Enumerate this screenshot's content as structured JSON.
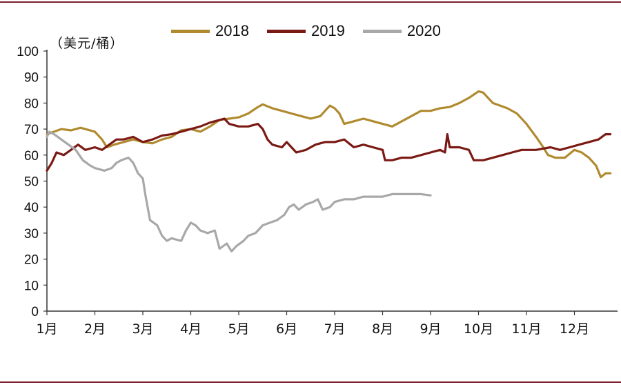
{
  "chart_data": {
    "type": "line",
    "ylabel": "（美元/桶）",
    "ylim": [
      0,
      100
    ],
    "yticks": [
      "0",
      "10",
      "20",
      "30",
      "40",
      "50",
      "60",
      "70",
      "80",
      "90",
      "100"
    ],
    "categories": [
      "1月",
      "2月",
      "3月",
      "4月",
      "5月",
      "6月",
      "7月",
      "8月",
      "9月",
      "10月",
      "11月",
      "12月"
    ],
    "legend_position": "top",
    "grid": false,
    "series": [
      {
        "name": "2018",
        "color": "#b08a2e",
        "points": [
          [
            1.0,
            68
          ],
          [
            1.3,
            70
          ],
          [
            1.5,
            69.5
          ],
          [
            1.7,
            70.5
          ],
          [
            2.0,
            69
          ],
          [
            2.15,
            66
          ],
          [
            2.25,
            63
          ],
          [
            2.4,
            64
          ],
          [
            2.6,
            65
          ],
          [
            2.8,
            66
          ],
          [
            3.0,
            65
          ],
          [
            3.2,
            64.5
          ],
          [
            3.4,
            66
          ],
          [
            3.6,
            67
          ],
          [
            3.8,
            69.5
          ],
          [
            4.0,
            70
          ],
          [
            4.2,
            69
          ],
          [
            4.4,
            71
          ],
          [
            4.6,
            73.5
          ],
          [
            4.8,
            74
          ],
          [
            5.0,
            74.5
          ],
          [
            5.2,
            76
          ],
          [
            5.4,
            78.5
          ],
          [
            5.5,
            79.5
          ],
          [
            5.7,
            78
          ],
          [
            5.9,
            77
          ],
          [
            6.1,
            76
          ],
          [
            6.3,
            75
          ],
          [
            6.5,
            74
          ],
          [
            6.7,
            75
          ],
          [
            6.8,
            77
          ],
          [
            6.9,
            79
          ],
          [
            7.0,
            78
          ],
          [
            7.1,
            76
          ],
          [
            7.2,
            72
          ],
          [
            7.4,
            73
          ],
          [
            7.6,
            74
          ],
          [
            7.8,
            73
          ],
          [
            8.0,
            72
          ],
          [
            8.2,
            71
          ],
          [
            8.4,
            73
          ],
          [
            8.6,
            75
          ],
          [
            8.8,
            77
          ],
          [
            9.0,
            77
          ],
          [
            9.2,
            78
          ],
          [
            9.4,
            78.5
          ],
          [
            9.6,
            80
          ],
          [
            9.8,
            82
          ],
          [
            10.0,
            84.5
          ],
          [
            10.1,
            84
          ],
          [
            10.2,
            82
          ],
          [
            10.3,
            80
          ],
          [
            10.6,
            78
          ],
          [
            10.8,
            76
          ],
          [
            11.0,
            72
          ],
          [
            11.2,
            67
          ],
          [
            11.35,
            63
          ],
          [
            11.45,
            60
          ],
          [
            11.6,
            59
          ],
          [
            11.8,
            59
          ],
          [
            12.0,
            62
          ],
          [
            12.15,
            61
          ],
          [
            12.3,
            59
          ],
          [
            12.45,
            56
          ],
          [
            12.55,
            51.5
          ],
          [
            12.65,
            53
          ],
          [
            12.75,
            53
          ]
        ]
      },
      {
        "name": "2019",
        "color": "#7b1a14",
        "points": [
          [
            1.0,
            54
          ],
          [
            1.1,
            57
          ],
          [
            1.2,
            61
          ],
          [
            1.35,
            60
          ],
          [
            1.5,
            62
          ],
          [
            1.65,
            64
          ],
          [
            1.8,
            62
          ],
          [
            2.0,
            63
          ],
          [
            2.15,
            62
          ],
          [
            2.3,
            64
          ],
          [
            2.45,
            66
          ],
          [
            2.6,
            66
          ],
          [
            2.8,
            67
          ],
          [
            3.0,
            65
          ],
          [
            3.2,
            66
          ],
          [
            3.4,
            67.5
          ],
          [
            3.6,
            68
          ],
          [
            3.8,
            69
          ],
          [
            4.0,
            70
          ],
          [
            4.2,
            71
          ],
          [
            4.4,
            72.5
          ],
          [
            4.6,
            73.5
          ],
          [
            4.7,
            74
          ],
          [
            4.8,
            72
          ],
          [
            5.0,
            71
          ],
          [
            5.2,
            71
          ],
          [
            5.4,
            72
          ],
          [
            5.5,
            70
          ],
          [
            5.6,
            66
          ],
          [
            5.7,
            64
          ],
          [
            5.9,
            63
          ],
          [
            6.0,
            65
          ],
          [
            6.1,
            63
          ],
          [
            6.2,
            61
          ],
          [
            6.4,
            62
          ],
          [
            6.6,
            64
          ],
          [
            6.8,
            65
          ],
          [
            7.0,
            65
          ],
          [
            7.2,
            66
          ],
          [
            7.4,
            63
          ],
          [
            7.6,
            64
          ],
          [
            7.8,
            63
          ],
          [
            8.0,
            62
          ],
          [
            8.05,
            58
          ],
          [
            8.2,
            58
          ],
          [
            8.4,
            59
          ],
          [
            8.6,
            59
          ],
          [
            8.8,
            60
          ],
          [
            9.0,
            61
          ],
          [
            9.2,
            62
          ],
          [
            9.3,
            61
          ],
          [
            9.35,
            68
          ],
          [
            9.4,
            63
          ],
          [
            9.6,
            63
          ],
          [
            9.8,
            62
          ],
          [
            9.9,
            58
          ],
          [
            10.1,
            58
          ],
          [
            10.3,
            59
          ],
          [
            10.5,
            60
          ],
          [
            10.7,
            61
          ],
          [
            10.9,
            62
          ],
          [
            11.2,
            62
          ],
          [
            11.5,
            63
          ],
          [
            11.7,
            62
          ],
          [
            11.9,
            63
          ],
          [
            12.1,
            64
          ],
          [
            12.3,
            65
          ],
          [
            12.5,
            66
          ],
          [
            12.65,
            68
          ],
          [
            12.75,
            68
          ]
        ]
      },
      {
        "name": "2020",
        "color": "#a8a8a8",
        "points": [
          [
            1.0,
            67
          ],
          [
            1.05,
            69
          ],
          [
            1.15,
            68
          ],
          [
            1.3,
            66
          ],
          [
            1.45,
            64
          ],
          [
            1.6,
            62
          ],
          [
            1.75,
            58
          ],
          [
            1.9,
            56
          ],
          [
            2.0,
            55
          ],
          [
            2.2,
            54
          ],
          [
            2.35,
            55
          ],
          [
            2.45,
            57
          ],
          [
            2.55,
            58
          ],
          [
            2.7,
            59
          ],
          [
            2.8,
            57
          ],
          [
            2.9,
            53
          ],
          [
            3.0,
            51
          ],
          [
            3.05,
            45
          ],
          [
            3.15,
            35
          ],
          [
            3.3,
            33
          ],
          [
            3.4,
            29
          ],
          [
            3.5,
            27
          ],
          [
            3.6,
            28
          ],
          [
            3.8,
            27
          ],
          [
            3.9,
            31
          ],
          [
            4.0,
            34
          ],
          [
            4.1,
            33
          ],
          [
            4.2,
            31
          ],
          [
            4.35,
            30
          ],
          [
            4.5,
            31
          ],
          [
            4.6,
            24
          ],
          [
            4.75,
            26
          ],
          [
            4.85,
            23
          ],
          [
            4.95,
            25
          ],
          [
            5.1,
            27
          ],
          [
            5.2,
            29
          ],
          [
            5.35,
            30
          ],
          [
            5.5,
            33
          ],
          [
            5.65,
            34
          ],
          [
            5.8,
            35
          ],
          [
            5.95,
            37
          ],
          [
            6.05,
            40
          ],
          [
            6.15,
            41
          ],
          [
            6.25,
            39
          ],
          [
            6.4,
            41
          ],
          [
            6.55,
            42
          ],
          [
            6.65,
            43
          ],
          [
            6.75,
            39
          ],
          [
            6.9,
            40
          ],
          [
            7.0,
            42
          ],
          [
            7.2,
            43
          ],
          [
            7.4,
            43
          ],
          [
            7.6,
            44
          ],
          [
            7.8,
            44
          ],
          [
            8.0,
            44
          ],
          [
            8.2,
            45
          ],
          [
            8.4,
            45
          ],
          [
            8.6,
            45
          ],
          [
            8.8,
            45
          ],
          [
            9.0,
            44.5
          ]
        ]
      }
    ]
  }
}
